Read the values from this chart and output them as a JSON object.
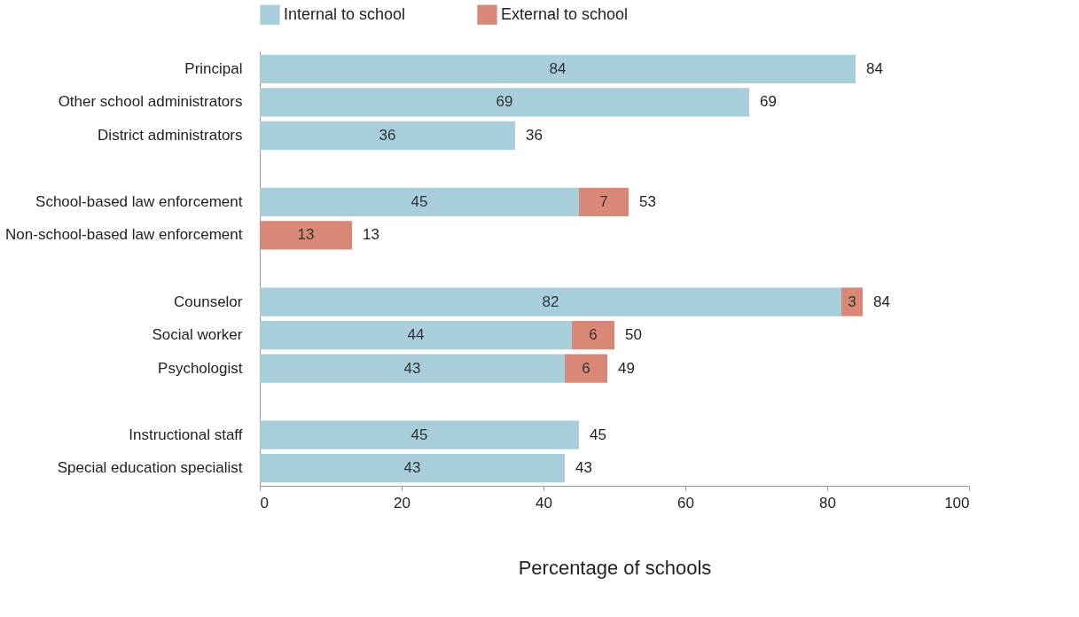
{
  "chart_data": {
    "type": "bar",
    "orientation": "horizontal",
    "stacked": true,
    "xlabel": "Percentage of schools",
    "categories": [
      "Principal",
      "Other school administrators",
      "District administrators",
      null,
      "School-based law enforcement",
      "Non-school-based law enforcement",
      null,
      "Counselor",
      "Social worker",
      "Psychologist",
      null,
      "Instructional staff",
      "Special education specialist"
    ],
    "series": [
      {
        "name": "Internal to school",
        "color": "#a8cddb",
        "values": [
          84,
          69,
          36,
          null,
          45,
          null,
          null,
          82,
          44,
          43,
          null,
          45,
          43
        ]
      },
      {
        "name": "External to school",
        "color": "#d98878",
        "values": [
          null,
          null,
          null,
          null,
          7,
          13,
          null,
          3,
          6,
          6,
          null,
          null,
          null
        ]
      }
    ],
    "totals": [
      "84",
      "69",
      "36",
      null,
      "53",
      "13",
      null,
      "84",
      "50",
      "49",
      null,
      "45",
      "43"
    ],
    "data_labels": true,
    "xlim": [
      0,
      100
    ],
    "xticks": [
      0,
      20,
      40,
      60,
      80,
      100
    ],
    "grid": false,
    "legend": "top"
  }
}
